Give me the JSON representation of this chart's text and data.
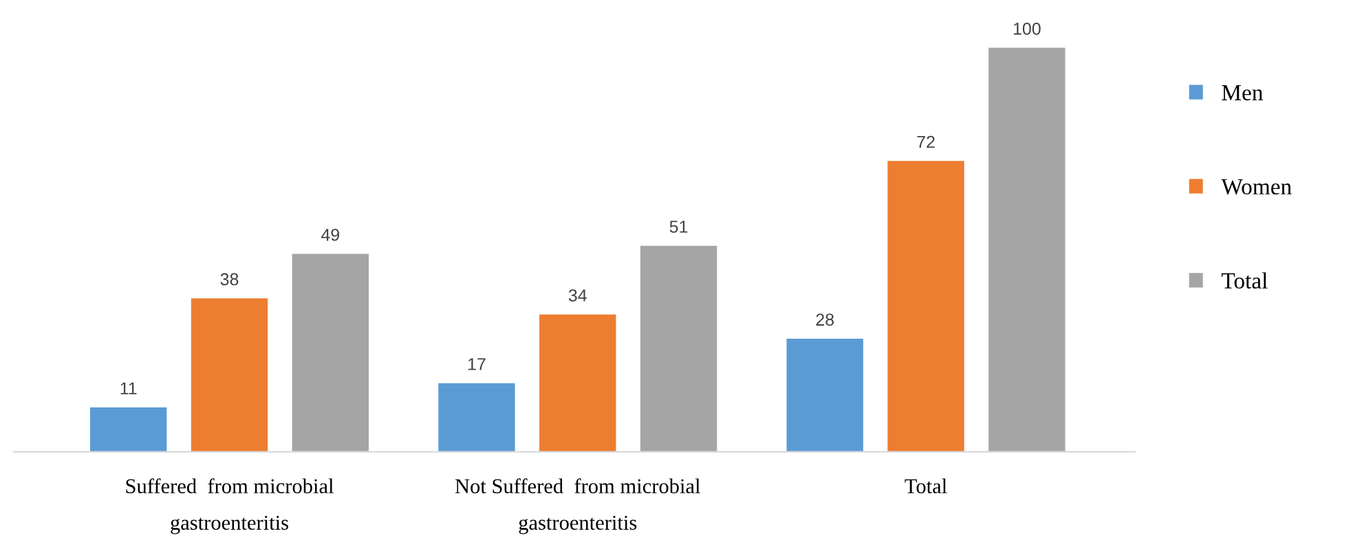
{
  "chart_data": {
    "type": "bar",
    "categories": [
      "Suffered  from microbial\ngastroenteritis",
      "Not Suffered  from microbial\ngastroenteritis",
      "Total"
    ],
    "series": [
      {
        "name": "Men",
        "color": "#5b9bd5",
        "values": [
          11,
          17,
          28
        ]
      },
      {
        "name": "Women",
        "color": "#ed7d31",
        "values": [
          38,
          34,
          72
        ]
      },
      {
        "name": "Total",
        "color": "#a5a5a5",
        "values": [
          49,
          51,
          100
        ]
      }
    ],
    "data_labels": true,
    "legend": "right",
    "grid": false
  }
}
